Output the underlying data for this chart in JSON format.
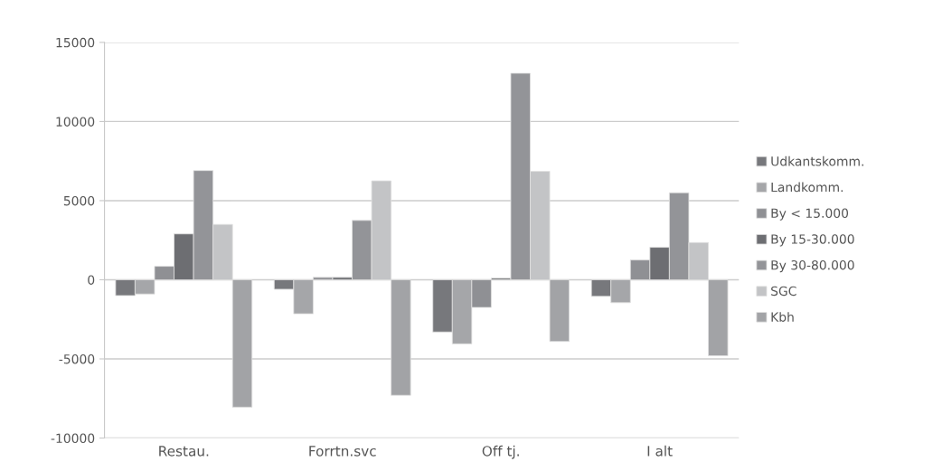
{
  "chart_data": {
    "type": "bar",
    "categories": [
      "Restau.",
      "Forrtn.svc",
      "Off tj.",
      "I alt"
    ],
    "series": [
      {
        "name": "Udkantskomm.",
        "color": "#77787c",
        "values": [
          -1000,
          -600,
          -3300,
          -1050
        ]
      },
      {
        "name": "Landkomm.",
        "color": "#a5a6a9",
        "values": [
          -900,
          -2150,
          -4050,
          -1450
        ]
      },
      {
        "name": "By < 15.000",
        "color": "#8f9094",
        "values": [
          850,
          150,
          -1750,
          1250
        ]
      },
      {
        "name": "By 15-30.000",
        "color": "#6d6e72",
        "values": [
          2900,
          150,
          100,
          2050
        ]
      },
      {
        "name": "By 30-80.000",
        "color": "#939498",
        "values": [
          6900,
          3750,
          13050,
          5500
        ]
      },
      {
        "name": "SGC",
        "color": "#c3c4c6",
        "values": [
          3500,
          6250,
          6850,
          2350
        ]
      },
      {
        "name": "Kbh",
        "color": "#a2a3a6",
        "values": [
          -8050,
          -7300,
          -3900,
          -4800
        ]
      }
    ],
    "ylim": [
      -10000,
      15000
    ],
    "yticks": [
      -10000,
      -5000,
      0,
      5000,
      10000,
      15000
    ],
    "grid": "y",
    "legend": "right"
  }
}
